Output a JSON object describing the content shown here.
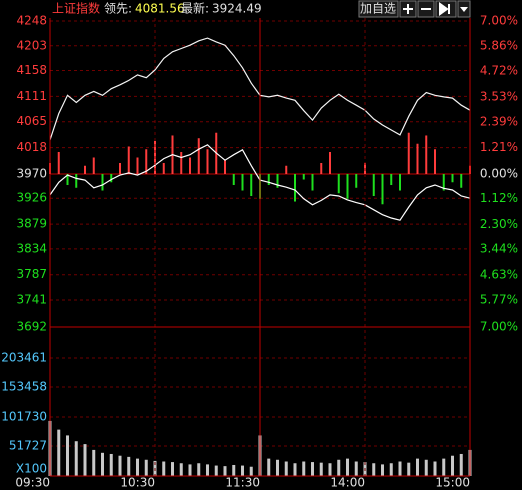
{
  "header": {
    "title": "上证指数",
    "leader_label": "领先:",
    "leader_value": "4081.56",
    "latest_label": "最新:",
    "latest_value": "3924.49",
    "button": "加自选"
  },
  "chart_data": [
    {
      "type": "line",
      "x": [
        0,
        5,
        10,
        15,
        20,
        25,
        30,
        35,
        40,
        45,
        50,
        55,
        60,
        65,
        70,
        75,
        80,
        85,
        90,
        95,
        100,
        105,
        110,
        115,
        120,
        125,
        130,
        135,
        140,
        145,
        150,
        155,
        160,
        165,
        170,
        175,
        180,
        185,
        190,
        195,
        200,
        205,
        210,
        215,
        220,
        225,
        230,
        235,
        240
      ],
      "xlim": [
        0,
        240
      ],
      "ylim": [
        3692,
        4248
      ],
      "yticks": [
        4248,
        4203,
        4158,
        4111,
        4065,
        4018,
        3970,
        3926,
        3879,
        3834,
        3787,
        3741,
        3692
      ],
      "base": 3970,
      "y2lim": [
        -7,
        7
      ],
      "y2ticks": [
        {
          "value": 7,
          "label": "7.00%"
        },
        {
          "value": 5.86,
          "label": "5.86%"
        },
        {
          "value": 4.72,
          "label": "4.72%"
        },
        {
          "value": 3.53,
          "label": "3.53%"
        },
        {
          "value": 2.39,
          "label": "2.39%"
        },
        {
          "value": 1.21,
          "label": "1.21%"
        },
        {
          "value": 0,
          "label": "0.00%"
        },
        {
          "value": -1.12,
          "label": "1.12%"
        },
        {
          "value": -2.3,
          "label": "2.30%"
        },
        {
          "value": -3.44,
          "label": "3.44%"
        },
        {
          "value": -4.63,
          "label": "4.63%"
        },
        {
          "value": -5.77,
          "label": "5.77%"
        },
        {
          "value": -7,
          "label": "7.00%"
        }
      ],
      "grid": true,
      "series": [
        {
          "color": "#f4f4f4",
          "values": [
            4032,
            4080,
            4113,
            4100,
            4113,
            4120,
            4113,
            4125,
            4132,
            4140,
            4150,
            4145,
            4159,
            4180,
            4192,
            4198,
            4204,
            4212,
            4217,
            4210,
            4204,
            4185,
            4163,
            4135,
            4113,
            4110,
            4113,
            4108,
            4104,
            4085,
            4068,
            4090,
            4104,
            4115,
            4104,
            4095,
            4086,
            4070,
            4059,
            4050,
            4041,
            4075,
            4104,
            4118,
            4113,
            4110,
            4108,
            4095,
            4086
          ]
        },
        {
          "color": "#ffffff",
          "values": [
            3932,
            3955,
            3968,
            3962,
            3959,
            3945,
            3950,
            3960,
            3968,
            3972,
            3968,
            3975,
            3986,
            3998,
            4005,
            4000,
            4005,
            4015,
            4023,
            4008,
            3995,
            4005,
            4014,
            3985,
            3959,
            3955,
            3950,
            3946,
            3941,
            3925,
            3914,
            3922,
            3932,
            3930,
            3923,
            3918,
            3914,
            3905,
            3896,
            3890,
            3886,
            3910,
            3932,
            3945,
            3950,
            3944,
            3941,
            3930,
            3926
          ]
        }
      ],
      "bars": {
        "up_color": "#ff3c3c",
        "down_color": "#1ee01e",
        "values": [
          3990,
          4010,
          3950,
          3945,
          3985,
          4000,
          3940,
          3955,
          3990,
          4020,
          4000,
          4015,
          4030,
          3990,
          4040,
          4010,
          4000,
          4035,
          4015,
          4045,
          3995,
          3950,
          3940,
          3930,
          3925,
          3950,
          3945,
          3985,
          3920,
          3960,
          3940,
          3990,
          4010,
          3935,
          3925,
          3945,
          3990,
          3930,
          3915,
          3950,
          3940,
          4045,
          4025,
          4040,
          4015,
          3940,
          3955,
          3945,
          3985
        ]
      }
    },
    {
      "type": "bar",
      "x": [
        0,
        5,
        10,
        15,
        20,
        25,
        30,
        35,
        40,
        45,
        50,
        55,
        60,
        65,
        70,
        75,
        80,
        85,
        90,
        95,
        100,
        105,
        110,
        115,
        120,
        125,
        130,
        135,
        140,
        145,
        150,
        155,
        160,
        165,
        170,
        175,
        180,
        185,
        190,
        195,
        200,
        205,
        210,
        215,
        220,
        225,
        230,
        235,
        240
      ],
      "xlim": [
        0,
        240
      ],
      "xticks": [
        {
          "value": 0,
          "label": "09:30"
        },
        {
          "value": 60,
          "label": "10:30"
        },
        {
          "value": 120,
          "label": "11:30"
        },
        {
          "value": 180,
          "label": "14:00"
        },
        {
          "value": 240,
          "label": "15:00"
        }
      ],
      "ylim": [
        0,
        257000
      ],
      "yticks": [
        203461,
        153458,
        101730,
        51727,
        {
          "value": 0,
          "label": "X100"
        }
      ],
      "color": "#c8c8c8",
      "values": [
        95000,
        80000,
        70000,
        60000,
        55000,
        45000,
        40000,
        38000,
        35000,
        33000,
        30000,
        28000,
        26000,
        25000,
        24000,
        22000,
        20000,
        22000,
        20000,
        18000,
        17000,
        19000,
        18000,
        16000,
        70000,
        30000,
        28000,
        25000,
        22000,
        25000,
        24000,
        23000,
        22000,
        28000,
        30000,
        25000,
        24000,
        22000,
        20000,
        22000,
        25000,
        23000,
        30000,
        28000,
        25000,
        30000,
        35000,
        38000,
        45000
      ]
    }
  ]
}
